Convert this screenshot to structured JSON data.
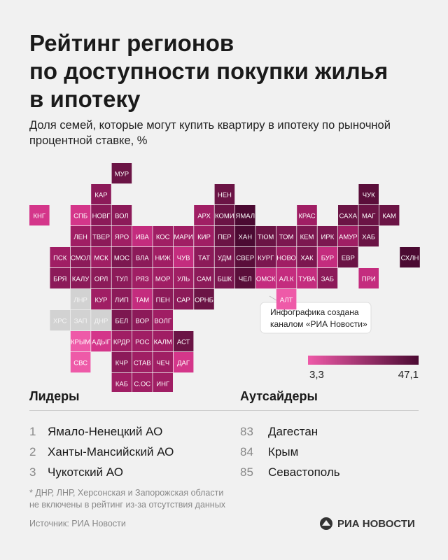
{
  "header": {
    "title_lines": [
      "Рейтинг регионов",
      "по доступности покупки жилья",
      "в ипотеку"
    ],
    "subtitle": "Доля семей, которые могут купить квартиру в ипотеку по рыночной процентной ставке, %"
  },
  "map": {
    "tiles": [
      {
        "label": "МУР",
        "color": "#6b1445"
      },
      {
        "label": "КАР",
        "color": "#8c1a59"
      },
      {
        "label": "НЕН",
        "color": "#6b1445"
      },
      {
        "label": "ЧУК",
        "color": "#5a0e3a"
      },
      {
        "label": "КНГ",
        "color": "#d4368a"
      },
      {
        "label": "СПБ",
        "color": "#d4368a"
      },
      {
        "label": "НОВГ",
        "color": "#8c1a59"
      },
      {
        "label": "ВОЛ",
        "color": "#8c1a59"
      },
      {
        "label": "АРХ",
        "color": "#a01e64"
      },
      {
        "label": "КОМИ",
        "color": "#6b1445"
      },
      {
        "label": "ЯМАЛ",
        "color": "#4b0a32"
      },
      {
        "label": "КРАС",
        "color": "#a01e64"
      },
      {
        "label": "САХА",
        "color": "#6b1445"
      },
      {
        "label": "МАГ",
        "color": "#6b1445"
      },
      {
        "label": "КАМ",
        "color": "#6b1445"
      },
      {
        "label": "ЛЕН",
        "color": "#a01e64"
      },
      {
        "label": "ТВЕР",
        "color": "#8c1a59"
      },
      {
        "label": "ЯРО",
        "color": "#a01e64"
      },
      {
        "label": "ИВА",
        "color": "#c42c7e"
      },
      {
        "label": "КОС",
        "color": "#a01e64"
      },
      {
        "label": "МАРИ",
        "color": "#a01e64"
      },
      {
        "label": "КИР",
        "color": "#a01e64"
      },
      {
        "label": "ПЕР",
        "color": "#6b1445"
      },
      {
        "label": "ХАН",
        "color": "#4b0a32"
      },
      {
        "label": "ТЮМ",
        "color": "#6b1445"
      },
      {
        "label": "ТОМ",
        "color": "#7c1750"
      },
      {
        "label": "КЕМ",
        "color": "#7c1750"
      },
      {
        "label": "ИРК",
        "color": "#7c1750"
      },
      {
        "label": "АМУР",
        "color": "#a01e64"
      },
      {
        "label": "ХАБ",
        "color": "#6b1445"
      },
      {
        "label": "ПСК",
        "color": "#a01e64"
      },
      {
        "label": "СМОЛ",
        "color": "#8c1a59"
      },
      {
        "label": "МСК",
        "color": "#a01e64"
      },
      {
        "label": "МОС",
        "color": "#7c1750"
      },
      {
        "label": "ВЛА",
        "color": "#8c1a59"
      },
      {
        "label": "НИЖ",
        "color": "#a01e64"
      },
      {
        "label": "ЧУВ",
        "color": "#c42c7e"
      },
      {
        "label": "ТАТ",
        "color": "#8c1a59"
      },
      {
        "label": "УДМ",
        "color": "#7c1750"
      },
      {
        "label": "СВЕР",
        "color": "#5a0e3a"
      },
      {
        "label": "КУРГ",
        "color": "#7c1750"
      },
      {
        "label": "НОВО",
        "color": "#a01e64"
      },
      {
        "label": "ХАК",
        "color": "#7c1750"
      },
      {
        "label": "БУР",
        "color": "#c42c7e"
      },
      {
        "label": "ЕВР",
        "color": "#6b1445"
      },
      {
        "label": "СХЛН",
        "color": "#4b0a32"
      },
      {
        "label": "БРЯ",
        "color": "#8c1a59"
      },
      {
        "label": "КАЛУ",
        "color": "#8c1a59"
      },
      {
        "label": "ОРЛ",
        "color": "#8c1a59"
      },
      {
        "label": "ТУЛ",
        "color": "#8c1a59"
      },
      {
        "label": "РЯЗ",
        "color": "#a01e64"
      },
      {
        "label": "МОР",
        "color": "#a01e64"
      },
      {
        "label": "УЛЬ",
        "color": "#a01e64"
      },
      {
        "label": "САМ",
        "color": "#8c1a59"
      },
      {
        "label": "БШК",
        "color": "#7c1750"
      },
      {
        "label": "ЧЕЛ",
        "color": "#5a0e3a"
      },
      {
        "label": "ОМСК",
        "color": "#c42c7e"
      },
      {
        "label": "АЛ.К",
        "color": "#c42c7e"
      },
      {
        "label": "ТУВА",
        "color": "#c42c7e"
      },
      {
        "label": "ЗАБ",
        "color": "#8c1a59"
      },
      {
        "label": "ПРИ",
        "color": "#c42c7e"
      },
      {
        "label": "ЛНР",
        "color": "#d2d2d2"
      },
      {
        "label": "КУР",
        "color": "#a01e64"
      },
      {
        "label": "ЛИП",
        "color": "#8c1a59"
      },
      {
        "label": "ТАМ",
        "color": "#c42c7e"
      },
      {
        "label": "ПЕН",
        "color": "#8c1a59"
      },
      {
        "label": "САР",
        "color": "#8c1a59"
      },
      {
        "label": "ОРНБ",
        "color": "#6b1445"
      },
      {
        "label": "АЛТ",
        "color": "#ee5aa8"
      },
      {
        "label": "ХРС",
        "color": "#d2d2d2"
      },
      {
        "label": "ЗАП",
        "color": "#d2d2d2"
      },
      {
        "label": "ДНР",
        "color": "#d2d2d2"
      },
      {
        "label": "БЕЛ",
        "color": "#7c1750"
      },
      {
        "label": "ВОР",
        "color": "#8c1a59"
      },
      {
        "label": "ВОЛГ",
        "color": "#a01e64"
      },
      {
        "label": "КРЫМ",
        "color": "#ee5aa8"
      },
      {
        "label": "АДЫГ",
        "color": "#d4368a"
      },
      {
        "label": "КРДР",
        "color": "#a01e64"
      },
      {
        "label": "РОС",
        "color": "#a01e64"
      },
      {
        "label": "КАЛМ",
        "color": "#a01e64"
      },
      {
        "label": "АСТ",
        "color": "#6b1445"
      },
      {
        "label": "СВС",
        "color": "#ee5aa8"
      },
      {
        "label": "КЧР",
        "color": "#8c1a59"
      },
      {
        "label": "СТАВ",
        "color": "#a01e64"
      },
      {
        "label": "ЧЕЧ",
        "color": "#a01e64"
      },
      {
        "label": "ДАГ",
        "color": "#d4368a"
      },
      {
        "label": "КАБ",
        "color": "#a01e64"
      },
      {
        "label": "С.ОС",
        "color": "#a01e64"
      },
      {
        "label": "ИНГ",
        "color": "#a01e64"
      }
    ],
    "note": [
      "Инфографика создана",
      "каналом «РИА Новости»"
    ],
    "legend": {
      "colors": [
        "#ee5aa8",
        "#4b0a32"
      ],
      "min": {
        "value": 3.3,
        "label": "3,3"
      },
      "max": {
        "value": 47.1,
        "label": "47,1"
      }
    }
  },
  "leaders": {
    "title": "Лидеры",
    "items": [
      {
        "rank": "1",
        "name": "Ямало-Ненецкий АО"
      },
      {
        "rank": "2",
        "name": "Ханты-Мансийский АО"
      },
      {
        "rank": "3",
        "name": "Чукотский АО"
      }
    ]
  },
  "outsiders": {
    "title": "Аутсайдеры",
    "items": [
      {
        "rank": "83",
        "name": "Дагестан"
      },
      {
        "rank": "84",
        "name": "Крым"
      },
      {
        "rank": "85",
        "name": "Севастополь"
      }
    ]
  },
  "footer": {
    "footnote": [
      "* ДНР, ЛНР, Херсонская и Запорожская области",
      "не включены в рейтинг из-за отсутствия данных"
    ],
    "source": "Источник: РИА Новости",
    "logo": "РИА НОВОСТИ"
  }
}
